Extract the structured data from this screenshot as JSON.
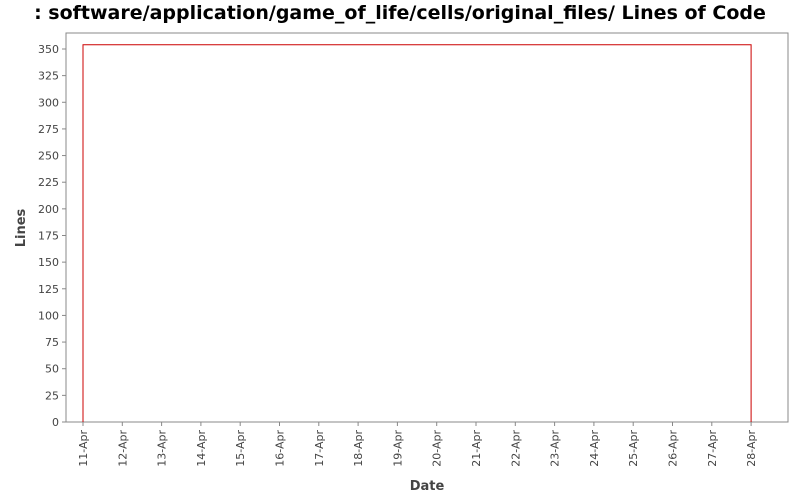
{
  "chart_data": {
    "type": "line",
    "title": ": software/application/game_of_life/cells/original_files/ Lines of Code",
    "xlabel": "Date",
    "ylabel": "Lines",
    "x_categories": [
      "11-Apr",
      "12-Apr",
      "13-Apr",
      "14-Apr",
      "15-Apr",
      "16-Apr",
      "17-Apr",
      "18-Apr",
      "19-Apr",
      "20-Apr",
      "21-Apr",
      "22-Apr",
      "23-Apr",
      "24-Apr",
      "25-Apr",
      "26-Apr",
      "27-Apr",
      "28-Apr"
    ],
    "xlim": [
      "11-Apr",
      "28-Apr"
    ],
    "ylim": [
      0,
      365
    ],
    "yticks": [
      0,
      25,
      50,
      75,
      100,
      125,
      150,
      175,
      200,
      225,
      250,
      275,
      300,
      325,
      350
    ],
    "grid": false,
    "series": [
      {
        "color": "#cc0000",
        "points": [
          {
            "x": "11-Apr",
            "y": 0
          },
          {
            "x": "11-Apr",
            "y": 354
          },
          {
            "x": "28-Apr",
            "y": 354
          },
          {
            "x": "28-Apr",
            "y": 0
          }
        ]
      }
    ]
  }
}
